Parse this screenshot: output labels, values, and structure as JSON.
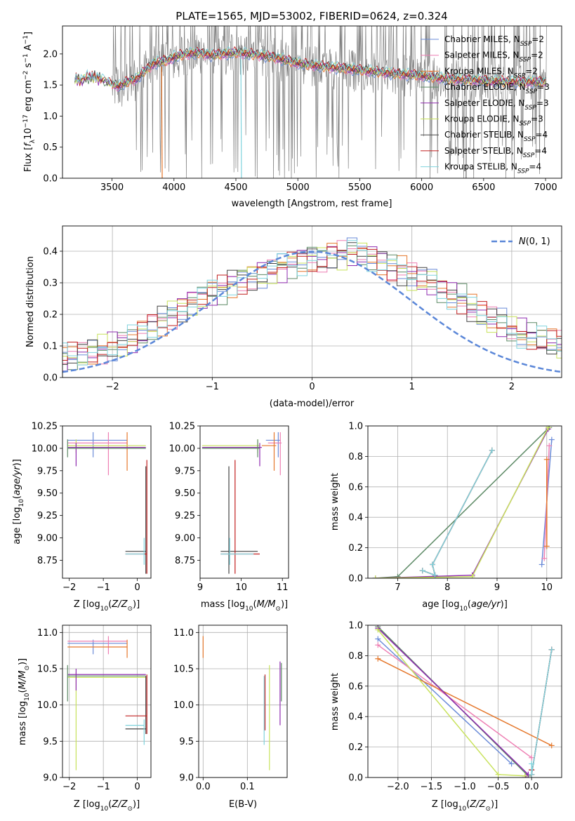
{
  "figure_title": "PLATE=1565, MJD=53002, FIBERID=0624, z=0.324",
  "colors": {
    "Chabrier MILES": "#6a8bd8",
    "Salpeter MILES": "#ee7fb3",
    "Kroupa MILES": "#e5772b",
    "Chabrier ELODIE": "#5d8a66",
    "Salpeter ELODIE": "#8f2bb0",
    "Kroupa ELODIE": "#c8e25c",
    "Chabrier STELIB": "#444444",
    "Salpeter STELIB": "#c11f1f",
    "Kroupa STELIB": "#7fd3dd",
    "data": "#808080",
    "normal": "#5b87d8"
  },
  "panels": {
    "spectrum": {
      "ylabel_pre": "Flux [",
      "ylabel_post": "]",
      "xlabel": "wavelength [Angstrom, rest frame]"
    },
    "residuals": {
      "ylabel": "Normed distribution",
      "xlabel": "(data-model)/error"
    },
    "age_Z": {
      "ylabel": "age  [log",
      "xlabel": "Z [log"
    },
    "age_mass": {
      "xlabel": "mass [log"
    },
    "mw_age": {
      "ylabel": "mass weight",
      "xlabel": "age  [log"
    },
    "mass_Z": {
      "ylabel": "mass [log",
      "xlabel": "Z [log"
    },
    "mass_ebv": {
      "xlabel": "E(B-V)"
    },
    "mw_Z": {
      "ylabel": "mass weight",
      "xlabel": "Z [log"
    }
  },
  "chart_data": [
    {
      "type": "line",
      "title": "PLATE=1565, MJD=53002, FIBERID=0624, z=0.324",
      "xlabel": "wavelength [Angstrom, rest frame]",
      "ylabel": "Flux [f_λ 10^-17 erg cm^-2 s^-1 A^-1]",
      "xlim": [
        3100,
        7130
      ],
      "ylim": [
        0,
        2.45
      ],
      "xticks": [
        3500,
        4000,
        4500,
        5000,
        5500,
        6000,
        6500,
        7000
      ],
      "yticks": [
        0.0,
        0.5,
        1.0,
        1.5,
        2.0
      ],
      "legend_position": "upper right",
      "series": [
        {
          "name": "Chabrier MILES, N_SSP=2"
        },
        {
          "name": "Salpeter MILES, N_SSP=2"
        },
        {
          "name": "Kroupa MILES, N_SSP=2"
        },
        {
          "name": "Chabrier ELODIE, N_SSP=3"
        },
        {
          "name": "Salpeter ELODIE, N_SSP=3"
        },
        {
          "name": "Kroupa ELODIE, N_SSP=3"
        },
        {
          "name": "Chabrier STELIB, N_SSP=4"
        },
        {
          "name": "Salpeter STELIB, N_SSP=4"
        },
        {
          "name": "Kroupa STELIB, N_SSP=4"
        }
      ],
      "model_continuum": {
        "x": [
          3200,
          3240,
          3300,
          3400,
          3480,
          3560,
          3620,
          3700,
          3760,
          3840,
          3900,
          3960,
          4000,
          4100,
          4200,
          4300,
          4400,
          4500,
          4600,
          4700,
          4800,
          4900,
          5000,
          5200,
          5400,
          5600,
          5800,
          6000,
          6200,
          6400,
          6600,
          6800,
          7000
        ],
        "y": [
          1.6,
          1.55,
          1.62,
          1.6,
          1.52,
          1.48,
          1.55,
          1.6,
          1.72,
          1.85,
          1.88,
          1.9,
          1.95,
          2.0,
          2.02,
          1.98,
          2.0,
          2.02,
          2.0,
          1.98,
          1.95,
          1.9,
          1.85,
          1.8,
          1.76,
          1.72,
          1.68,
          1.65,
          1.6,
          1.58,
          1.56,
          1.55,
          1.55
        ]
      }
    },
    {
      "type": "line",
      "xlabel": "(data-model)/error",
      "ylabel": "Normed distribution",
      "xlim": [
        -2.5,
        2.5
      ],
      "ylim": [
        0,
        0.48
      ],
      "xticks": [
        -2,
        -1,
        0,
        1,
        2
      ],
      "yticks": [
        0.0,
        0.1,
        0.2,
        0.3,
        0.4
      ],
      "grid": true,
      "legend_position": "upper right",
      "legend": "N(0,1)",
      "bin_width": 0.1,
      "base_hist": [
        0.03,
        0.035,
        0.04,
        0.05,
        0.05,
        0.06,
        0.065,
        0.07,
        0.08,
        0.09,
        0.1,
        0.11,
        0.12,
        0.14,
        0.16,
        0.18,
        0.2,
        0.22,
        0.24,
        0.25,
        0.27,
        0.28,
        0.3,
        0.31,
        0.32,
        0.33,
        0.34,
        0.35,
        0.36,
        0.37,
        0.38,
        0.38,
        0.39,
        0.39,
        0.4,
        0.39,
        0.38,
        0.37,
        0.35,
        0.34,
        0.32,
        0.31,
        0.3,
        0.28,
        0.26,
        0.25,
        0.22,
        0.2,
        0.18,
        0.17,
        0.15,
        0.14,
        0.13,
        0.12,
        0.11,
        0.1,
        0.09,
        0.08,
        0.07,
        0.06,
        0.06,
        0.05,
        0.05,
        0.045,
        0.04,
        0.04,
        0.035,
        0.03,
        0.03,
        0.03
      ]
    },
    {
      "type": "scatter",
      "xlabel": "Z [log10(Z/Zsun)]",
      "ylabel": "age [log10(age/yr)]",
      "xlim": [
        -2.2,
        0.4
      ],
      "ylim": [
        8.55,
        10.25
      ],
      "xticks": [
        -2,
        -1,
        0
      ],
      "yticks": [
        8.75,
        9.0,
        9.25,
        9.5,
        9.75,
        10.0,
        10.25
      ],
      "points": [
        {
          "series": "Chabrier MILES",
          "x": -1.3,
          "y": 10.09,
          "xlo": -2.05,
          "xhi": -0.3,
          "ylo": 9.9,
          "yhi": 10.18
        },
        {
          "series": "Salpeter MILES",
          "x": -0.85,
          "y": 10.06,
          "xlo": -2.05,
          "xhi": -0.3,
          "ylo": 9.7,
          "yhi": 10.18
        },
        {
          "series": "Kroupa MILES",
          "x": -0.3,
          "y": 10.03,
          "xlo": -2.05,
          "xhi": -0.3,
          "ylo": 9.75,
          "yhi": 10.18
        },
        {
          "series": "Kroupa ELODIE",
          "x": -1.8,
          "y": 10.03,
          "xlo": -2.05,
          "xhi": 0.25,
          "ylo": 9.95,
          "yhi": 10.1
        },
        {
          "series": "Salpeter ELODIE",
          "x": -1.8,
          "y": 10.01,
          "xlo": -2.05,
          "xhi": 0.25,
          "ylo": 9.8,
          "yhi": 10.06
        },
        {
          "series": "Chabrier ELODIE",
          "x": -2.05,
          "y": 10.0,
          "xlo": -2.05,
          "xhi": 0.25,
          "ylo": 9.9,
          "yhi": 10.1
        },
        {
          "series": "Chabrier STELIB",
          "x": 0.25,
          "y": 8.85,
          "xlo": -0.35,
          "xhi": 0.25,
          "ylo": 8.6,
          "yhi": 9.8
        },
        {
          "series": "Salpeter STELIB",
          "x": 0.28,
          "y": 8.82,
          "xlo": -0.35,
          "xhi": 0.28,
          "ylo": 8.6,
          "yhi": 9.87
        },
        {
          "series": "Kroupa STELIB",
          "x": 0.2,
          "y": 8.82,
          "xlo": -0.35,
          "xhi": 0.2,
          "ylo": 8.7,
          "yhi": 9.0
        }
      ]
    },
    {
      "type": "scatter",
      "xlabel": "mass [log10(M/Msun)]",
      "xlim": [
        9.0,
        11.15
      ],
      "ylim": [
        8.55,
        10.25
      ],
      "xticks": [
        9,
        10,
        11
      ],
      "yticks": [
        8.75,
        9.0,
        9.25,
        9.5,
        9.75,
        10.0,
        10.25
      ],
      "points": [
        {
          "series": "Chabrier MILES",
          "x": 10.9,
          "y": 10.09,
          "xlo": 10.6,
          "xhi": 10.95,
          "ylo": 9.9,
          "yhi": 10.18
        },
        {
          "series": "Salpeter MILES",
          "x": 10.95,
          "y": 10.06,
          "xlo": 10.65,
          "xhi": 10.98,
          "ylo": 9.7,
          "yhi": 10.18
        },
        {
          "series": "Kroupa MILES",
          "x": 10.8,
          "y": 10.03,
          "xlo": 10.5,
          "xhi": 10.85,
          "ylo": 9.75,
          "yhi": 10.18
        },
        {
          "series": "Kroupa ELODIE",
          "x": 10.4,
          "y": 10.03,
          "xlo": 9.05,
          "xhi": 10.45,
          "ylo": 9.95,
          "yhi": 10.1
        },
        {
          "series": "Salpeter ELODIE",
          "x": 10.45,
          "y": 10.01,
          "xlo": 9.05,
          "xhi": 10.5,
          "ylo": 9.8,
          "yhi": 10.06
        },
        {
          "series": "Chabrier ELODIE",
          "x": 10.4,
          "y": 10.0,
          "xlo": 9.05,
          "xhi": 10.45,
          "ylo": 9.9,
          "yhi": 10.1
        },
        {
          "series": "Chabrier STELIB",
          "x": 9.7,
          "y": 8.85,
          "xlo": 9.5,
          "xhi": 10.4,
          "ylo": 8.6,
          "yhi": 9.8
        },
        {
          "series": "Salpeter STELIB",
          "x": 9.85,
          "y": 8.82,
          "xlo": 9.5,
          "xhi": 10.45,
          "ylo": 8.6,
          "yhi": 9.87
        },
        {
          "series": "Kroupa STELIB",
          "x": 9.72,
          "y": 8.82,
          "xlo": 9.5,
          "xhi": 10.3,
          "ylo": 8.7,
          "yhi": 9.0
        }
      ]
    },
    {
      "type": "line",
      "xlabel": "age [log10(age/yr)]",
      "ylabel": "mass weight",
      "xlim": [
        6.4,
        10.3
      ],
      "ylim": [
        0,
        1.0
      ],
      "xticks": [
        7,
        8,
        9,
        10
      ],
      "yticks": [
        0.0,
        0.2,
        0.4,
        0.6,
        0.8,
        1.0
      ],
      "grid": true,
      "series": [
        {
          "name": "Chabrier MILES",
          "x": [
            9.9,
            10.1
          ],
          "y": [
            0.09,
            0.91
          ]
        },
        {
          "name": "Salpeter MILES",
          "x": [
            9.95,
            10.05
          ],
          "y": [
            0.13,
            0.87
          ]
        },
        {
          "name": "Kroupa MILES",
          "x": [
            10.0,
            10.0
          ],
          "y": [
            0.21,
            0.78
          ]
        },
        {
          "name": "Chabrier ELODIE",
          "x": [
            6.55,
            7.0,
            10.05
          ],
          "y": [
            0.0,
            0.01,
            0.99
          ]
        },
        {
          "name": "Salpeter ELODIE",
          "x": [
            6.55,
            8.5,
            10.03
          ],
          "y": [
            0.0,
            0.02,
            0.98
          ]
        },
        {
          "name": "Kroupa ELODIE",
          "x": [
            6.55,
            8.5,
            10.03
          ],
          "y": [
            0.0,
            0.01,
            0.99
          ]
        },
        {
          "name": "Chabrier STELIB",
          "x": [
            7.5,
            7.75,
            7.7,
            8.9
          ],
          "y": [
            0.05,
            0.02,
            0.09,
            0.84
          ]
        },
        {
          "name": "Salpeter STELIB",
          "x": [
            7.5,
            7.75,
            7.7,
            8.9
          ],
          "y": [
            0.05,
            0.02,
            0.09,
            0.84
          ]
        },
        {
          "name": "Kroupa STELIB",
          "x": [
            7.5,
            7.75,
            7.7,
            8.9
          ],
          "y": [
            0.05,
            0.02,
            0.09,
            0.84
          ]
        }
      ]
    },
    {
      "type": "scatter",
      "xlabel": "Z [log10(Z/Zsun)]",
      "ylabel": "mass [log10(M/Msun)]",
      "xlim": [
        -2.2,
        0.4
      ],
      "ylim": [
        9.0,
        11.1
      ],
      "xticks": [
        -2,
        -1,
        0
      ],
      "yticks": [
        9.0,
        9.5,
        10.0,
        10.5,
        11.0
      ],
      "grid": true,
      "points": [
        {
          "series": "Chabrier MILES",
          "x": -1.3,
          "y": 10.85,
          "xlo": -2.05,
          "xhi": -0.3,
          "ylo": 10.7,
          "yhi": 10.9
        },
        {
          "series": "Salpeter MILES",
          "x": -0.85,
          "y": 10.88,
          "xlo": -2.05,
          "xhi": -0.3,
          "ylo": 10.7,
          "yhi": 10.95
        },
        {
          "series": "Kroupa MILES",
          "x": -0.3,
          "y": 10.8,
          "xlo": -2.05,
          "xhi": -0.3,
          "ylo": 10.65,
          "yhi": 10.9
        },
        {
          "series": "Kroupa ELODIE",
          "x": -1.8,
          "y": 10.38,
          "xlo": -2.05,
          "xhi": 0.25,
          "ylo": 9.1,
          "yhi": 10.45
        },
        {
          "series": "Salpeter ELODIE",
          "x": -1.8,
          "y": 10.42,
          "xlo": -2.05,
          "xhi": 0.25,
          "ylo": 10.2,
          "yhi": 10.5
        },
        {
          "series": "Chabrier ELODIE",
          "x": -2.05,
          "y": 10.4,
          "xlo": -2.05,
          "xhi": 0.25,
          "ylo": 10.05,
          "yhi": 10.55
        },
        {
          "series": "Chabrier STELIB",
          "x": 0.25,
          "y": 9.67,
          "xlo": -0.35,
          "xhi": 0.25,
          "ylo": 9.6,
          "yhi": 10.4
        },
        {
          "series": "Salpeter STELIB",
          "x": 0.28,
          "y": 9.85,
          "xlo": -0.35,
          "xhi": 0.28,
          "ylo": 9.6,
          "yhi": 10.42
        },
        {
          "series": "Kroupa STELIB",
          "x": 0.2,
          "y": 9.72,
          "xlo": -0.35,
          "xhi": 0.2,
          "ylo": 9.45,
          "yhi": 9.8
        }
      ]
    },
    {
      "type": "scatter",
      "xlabel": "E(B-V)",
      "xlim": [
        -0.01,
        0.19
      ],
      "ylim": [
        9.0,
        11.1
      ],
      "xticks": [
        0.0,
        0.1
      ],
      "yticks": [
        9.0,
        9.5,
        10.0,
        10.5,
        11.0
      ],
      "grid": true,
      "points": [
        {
          "series": "Kroupa MILES",
          "x": 0.0,
          "y": 10.8,
          "ylo": 10.65,
          "yhi": 10.95
        },
        {
          "series": "Kroupa STELIB",
          "x": 0.138,
          "y": 9.9,
          "ylo": 9.45,
          "yhi": 10.4
        },
        {
          "series": "Salpeter STELIB",
          "x": 0.14,
          "y": 10.1,
          "ylo": 9.65,
          "yhi": 10.42
        },
        {
          "series": "Kroupa ELODIE",
          "x": 0.15,
          "y": 10.1,
          "ylo": 9.1,
          "yhi": 10.55
        },
        {
          "series": "Salpeter ELODIE",
          "x": 0.174,
          "y": 10.2,
          "ylo": 9.72,
          "yhi": 10.6
        },
        {
          "series": "Chabrier ELODIE",
          "x": 0.177,
          "y": 10.3,
          "ylo": 10.05,
          "yhi": 10.58
        }
      ]
    },
    {
      "type": "line",
      "xlabel": "Z [log10(Z/Zsun)]",
      "ylabel": "mass weight",
      "xlim": [
        -2.45,
        0.45
      ],
      "ylim": [
        0,
        1.0
      ],
      "xticks": [
        -2.0,
        -1.5,
        -1.0,
        -0.5,
        0.0
      ],
      "yticks": [
        0.0,
        0.2,
        0.4,
        0.6,
        0.8,
        1.0
      ],
      "grid": true,
      "series": [
        {
          "name": "Chabrier MILES",
          "x": [
            -2.3,
            -0.3
          ],
          "y": [
            0.91,
            0.09
          ]
        },
        {
          "name": "Salpeter MILES",
          "x": [
            -2.3,
            0.0
          ],
          "y": [
            0.87,
            0.13
          ]
        },
        {
          "name": "Kroupa MILES",
          "x": [
            -2.3,
            0.3
          ],
          "y": [
            0.78,
            0.21
          ]
        },
        {
          "name": "Chabrier ELODIE",
          "x": [
            -2.3,
            -0.05
          ],
          "y": [
            0.99,
            0.01
          ]
        },
        {
          "name": "Salpeter ELODIE",
          "x": [
            -2.3,
            -0.05,
            -0.1
          ],
          "y": [
            0.98,
            0.02,
            0.0
          ]
        },
        {
          "name": "Kroupa ELODIE",
          "x": [
            -2.3,
            -0.5,
            -0.1
          ],
          "y": [
            0.97,
            0.02,
            0.01
          ]
        },
        {
          "name": "Chabrier STELIB",
          "x": [
            0.0,
            0.0,
            0.3
          ],
          "y": [
            0.05,
            0.02,
            0.84
          ]
        },
        {
          "name": "Salpeter STELIB",
          "x": [
            0.0,
            0.0,
            0.3
          ],
          "y": [
            0.05,
            0.02,
            0.84
          ]
        },
        {
          "name": "Kroupa STELIB",
          "x": [
            0.0,
            0.0,
            0.3
          ],
          "y": [
            0.09,
            0.02,
            0.84
          ]
        }
      ]
    }
  ]
}
